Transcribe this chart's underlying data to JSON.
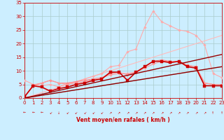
{
  "bg_color": "#cceeff",
  "grid_color": "#aacccc",
  "xlabel": "Vent moyen/en rafales ( km/h )",
  "xlim": [
    0,
    23
  ],
  "ylim": [
    0,
    35
  ],
  "xticks": [
    0,
    1,
    2,
    3,
    4,
    5,
    6,
    7,
    8,
    9,
    10,
    11,
    12,
    13,
    14,
    15,
    16,
    17,
    18,
    19,
    20,
    21,
    22,
    23
  ],
  "yticks": [
    0,
    5,
    10,
    15,
    20,
    25,
    30,
    35
  ],
  "tick_fontsize": 5,
  "label_fontsize": 5.5,
  "lines": [
    {
      "comment": "thin straight diagonal line 1 - pale pink, no marker",
      "x": [
        0,
        23
      ],
      "y": [
        0,
        11.5
      ],
      "color": "#ffbbbb",
      "lw": 0.8,
      "marker": null,
      "ms": 0
    },
    {
      "comment": "thin straight diagonal line 2 - pale pink, no marker, steeper",
      "x": [
        0,
        23
      ],
      "y": [
        0,
        23
      ],
      "color": "#ffbbbb",
      "lw": 0.8,
      "marker": null,
      "ms": 0
    },
    {
      "comment": "light pink spiky line with diamond markers - goes high at x=15",
      "x": [
        0,
        1,
        2,
        3,
        4,
        5,
        6,
        7,
        8,
        9,
        10,
        11,
        12,
        13,
        14,
        15,
        16,
        17,
        18,
        19,
        20,
        21,
        22,
        23
      ],
      "y": [
        6.5,
        5.0,
        4.5,
        5.0,
        4.0,
        5.5,
        6.0,
        7.0,
        8.0,
        9.0,
        11.5,
        12.0,
        17.0,
        18.0,
        26.0,
        32.0,
        28.0,
        26.5,
        25.0,
        24.5,
        23.0,
        19.5,
        9.0,
        7.5
      ],
      "color": "#ffaaaa",
      "lw": 0.8,
      "marker": "D",
      "ms": 1.8
    },
    {
      "comment": "medium pink line with diamonds",
      "x": [
        0,
        1,
        2,
        3,
        4,
        5,
        6,
        7,
        8,
        9,
        10,
        11,
        12,
        13,
        14,
        15,
        16,
        17,
        18,
        19,
        20,
        21,
        22,
        23
      ],
      "y": [
        0.5,
        4.8,
        5.5,
        6.5,
        5.5,
        5.5,
        6.0,
        6.5,
        7.0,
        7.5,
        9.0,
        9.5,
        8.5,
        9.5,
        11.5,
        13.5,
        14.0,
        13.5,
        13.5,
        12.0,
        11.5,
        5.5,
        5.0,
        5.0
      ],
      "color": "#ff8888",
      "lw": 0.8,
      "marker": "D",
      "ms": 1.8
    },
    {
      "comment": "medium pink line with diamonds 2",
      "x": [
        0,
        1,
        2,
        3,
        4,
        5,
        6,
        7,
        8,
        9,
        10,
        11,
        12,
        13,
        14,
        15,
        16,
        17,
        18,
        19,
        20,
        21,
        22,
        23
      ],
      "y": [
        0.5,
        4.5,
        5.5,
        6.5,
        5.5,
        5.0,
        5.5,
        6.0,
        7.0,
        7.5,
        8.5,
        9.0,
        9.0,
        9.5,
        11.0,
        12.5,
        13.5,
        13.5,
        13.5,
        12.0,
        11.5,
        5.5,
        5.0,
        5.0
      ],
      "color": "#ff9999",
      "lw": 0.8,
      "marker": "D",
      "ms": 1.8
    },
    {
      "comment": "dark red line with square markers - main bold line",
      "x": [
        0,
        1,
        2,
        3,
        4,
        5,
        6,
        7,
        8,
        9,
        10,
        11,
        12,
        13,
        14,
        15,
        16,
        17,
        18,
        19,
        20,
        21,
        22,
        23
      ],
      "y": [
        0.5,
        4.5,
        4.0,
        2.5,
        3.5,
        4.0,
        5.0,
        5.5,
        6.5,
        7.0,
        9.5,
        9.5,
        6.5,
        9.5,
        11.5,
        13.5,
        13.5,
        13.0,
        13.5,
        11.5,
        11.0,
        4.5,
        4.5,
        4.5
      ],
      "color": "#cc0000",
      "lw": 1.2,
      "marker": "s",
      "ms": 2.5
    },
    {
      "comment": "dark red straight diagonal - lower slope",
      "x": [
        0,
        23
      ],
      "y": [
        0,
        11.5
      ],
      "color": "#880000",
      "lw": 1.0,
      "marker": null,
      "ms": 0
    },
    {
      "comment": "dark red straight diagonal - medium slope",
      "x": [
        0,
        23
      ],
      "y": [
        0,
        16.0
      ],
      "color": "#990000",
      "lw": 1.0,
      "marker": null,
      "ms": 0
    }
  ],
  "arrows": [
    "←",
    "←",
    "←",
    "↙",
    "↓",
    "↙",
    "↙",
    "↙",
    "↙",
    "↙",
    "↗",
    "↗",
    "↗",
    "↗",
    "↗",
    "↗",
    "↗",
    "↗",
    "↗",
    "↗",
    "↗",
    "↗",
    "↑",
    "↑"
  ]
}
